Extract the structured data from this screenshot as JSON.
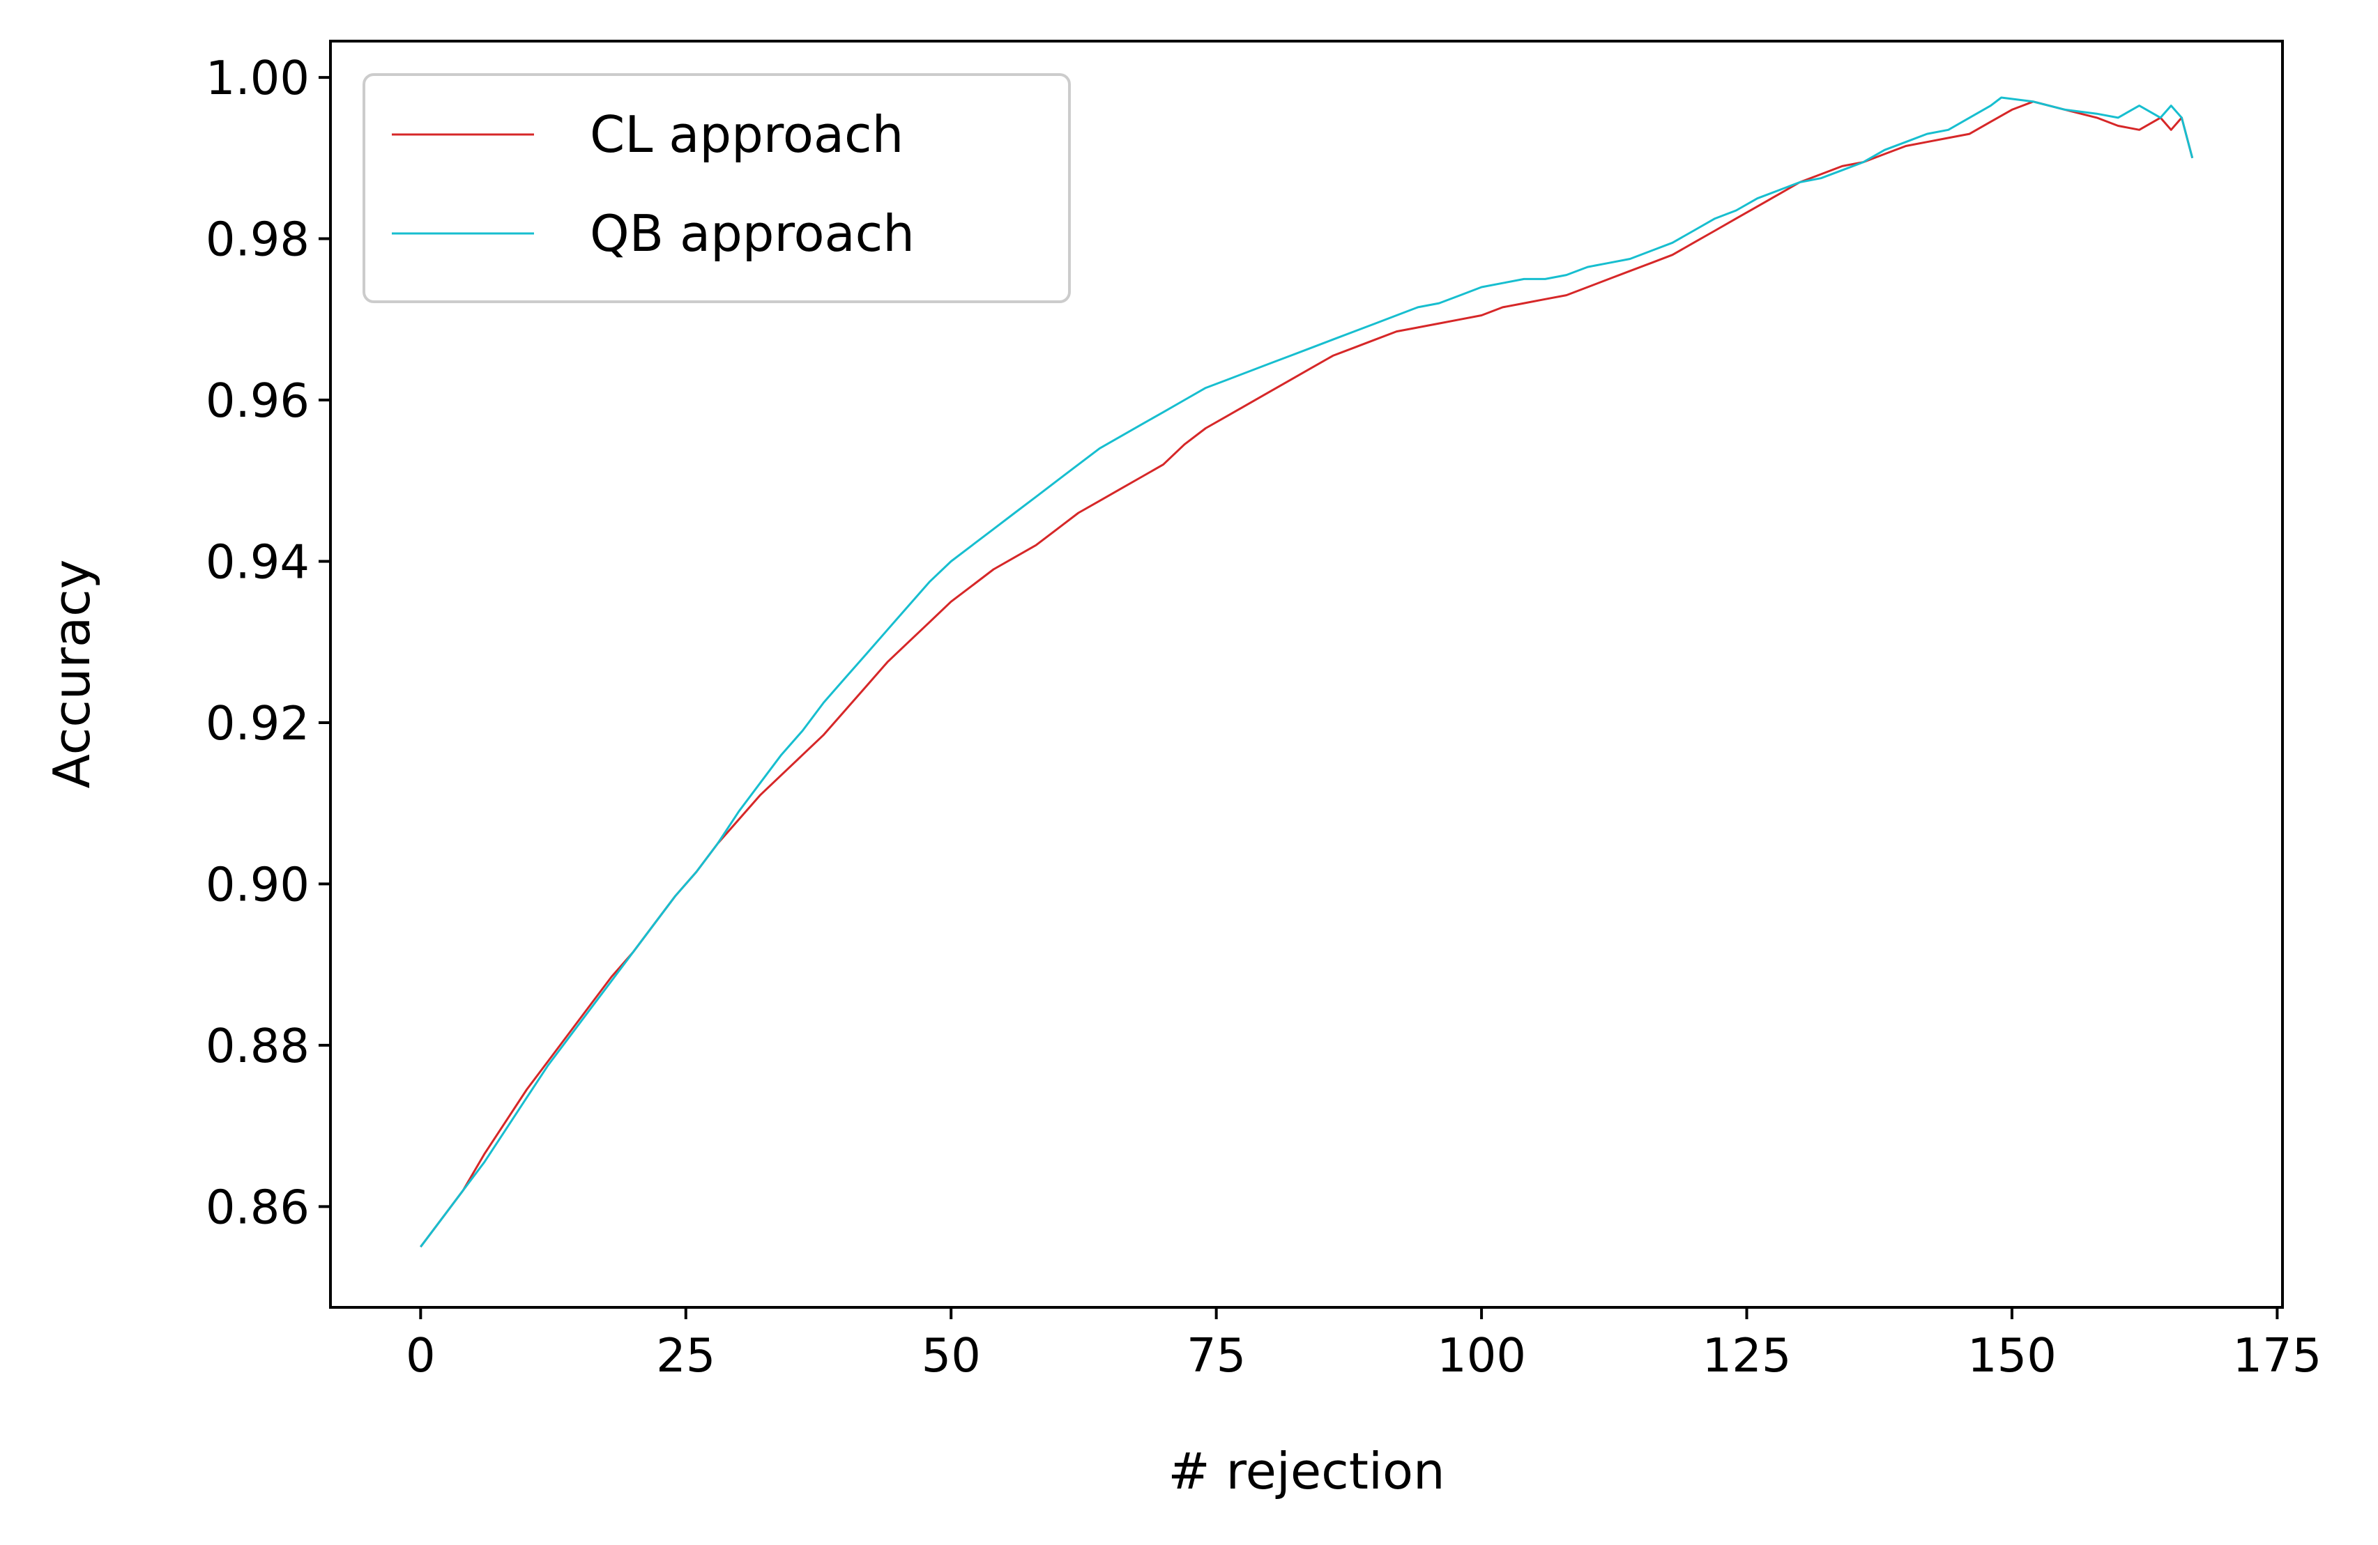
{
  "chart_data": {
    "type": "line",
    "title": "",
    "xlabel": "# rejection",
    "ylabel": "Accuracy",
    "xlim": [
      -8.5,
      175.5
    ],
    "ylim": [
      0.8475,
      1.0045
    ],
    "x_ticks": [
      0,
      25,
      50,
      75,
      100,
      125,
      150,
      175
    ],
    "x_tick_labels": [
      "0",
      "25",
      "50",
      "75",
      "100",
      "125",
      "150",
      "175"
    ],
    "y_ticks": [
      0.86,
      0.88,
      0.9,
      0.92,
      0.94,
      0.96,
      0.98,
      1.0
    ],
    "y_tick_labels": [
      "0.86",
      "0.88",
      "0.90",
      "0.92",
      "0.94",
      "0.96",
      "0.98",
      "1.00"
    ],
    "grid": false,
    "legend_position": "top-left",
    "series": [
      {
        "name": "CL approach",
        "color": "#d62728",
        "x": [
          0,
          2,
          4,
          6,
          8,
          10,
          12,
          14,
          16,
          18,
          20,
          22,
          24,
          26,
          28,
          30,
          32,
          34,
          36,
          38,
          40,
          42,
          44,
          46,
          48,
          50,
          52,
          54,
          56,
          58,
          60,
          62,
          64,
          66,
          68,
          70,
          72,
          74,
          76,
          78,
          80,
          82,
          84,
          86,
          88,
          90,
          92,
          94,
          96,
          98,
          100,
          102,
          104,
          106,
          108,
          110,
          112,
          114,
          116,
          118,
          120,
          122,
          124,
          126,
          128,
          130,
          132,
          134,
          136,
          138,
          140,
          142,
          144,
          146,
          148,
          150,
          151,
          152,
          155,
          158,
          160,
          162,
          164,
          165,
          166,
          167
        ],
        "y": [
          0.855,
          0.8585,
          0.862,
          0.8665,
          0.8705,
          0.8745,
          0.878,
          0.8815,
          0.885,
          0.8885,
          0.8915,
          0.895,
          0.8985,
          0.9015,
          0.905,
          0.908,
          0.911,
          0.9135,
          0.916,
          0.9185,
          0.9215,
          0.9245,
          0.9275,
          0.93,
          0.9325,
          0.935,
          0.937,
          0.939,
          0.9405,
          0.942,
          0.944,
          0.946,
          0.9475,
          0.949,
          0.9505,
          0.952,
          0.9545,
          0.9565,
          0.958,
          0.9595,
          0.961,
          0.9625,
          0.964,
          0.9655,
          0.9665,
          0.9675,
          0.9685,
          0.969,
          0.9695,
          0.97,
          0.9705,
          0.9715,
          0.972,
          0.9725,
          0.973,
          0.974,
          0.975,
          0.976,
          0.977,
          0.978,
          0.9795,
          0.981,
          0.9825,
          0.984,
          0.9855,
          0.987,
          0.988,
          0.989,
          0.9895,
          0.9905,
          0.9915,
          0.992,
          0.9925,
          0.993,
          0.9945,
          0.996,
          0.9965,
          0.997,
          0.996,
          0.995,
          0.994,
          0.9935,
          0.995,
          0.9935,
          0.995,
          0.99
        ]
      },
      {
        "name": "QB approach",
        "color": "#17becf",
        "x": [
          0,
          2,
          4,
          6,
          8,
          10,
          12,
          14,
          16,
          18,
          20,
          22,
          24,
          26,
          28,
          30,
          32,
          34,
          36,
          38,
          40,
          42,
          44,
          46,
          48,
          50,
          52,
          54,
          56,
          58,
          60,
          62,
          64,
          66,
          68,
          70,
          72,
          74,
          76,
          78,
          80,
          82,
          84,
          86,
          88,
          90,
          92,
          94,
          96,
          98,
          100,
          102,
          104,
          106,
          108,
          110,
          112,
          114,
          116,
          118,
          120,
          122,
          124,
          126,
          128,
          130,
          132,
          134,
          136,
          138,
          140,
          142,
          144,
          146,
          148,
          149,
          152,
          155,
          158,
          160,
          162,
          164,
          165,
          166,
          167
        ],
        "y": [
          0.855,
          0.8585,
          0.862,
          0.8655,
          0.8695,
          0.8735,
          0.8775,
          0.881,
          0.8845,
          0.888,
          0.8915,
          0.895,
          0.8985,
          0.9015,
          0.905,
          0.909,
          0.9125,
          0.916,
          0.919,
          0.9225,
          0.9255,
          0.9285,
          0.9315,
          0.9345,
          0.9375,
          0.94,
          0.942,
          0.944,
          0.946,
          0.948,
          0.95,
          0.952,
          0.954,
          0.9555,
          0.957,
          0.9585,
          0.96,
          0.9615,
          0.9625,
          0.9635,
          0.9645,
          0.9655,
          0.9665,
          0.9675,
          0.9685,
          0.9695,
          0.9705,
          0.9715,
          0.972,
          0.973,
          0.974,
          0.9745,
          0.975,
          0.975,
          0.9755,
          0.9765,
          0.977,
          0.9775,
          0.9785,
          0.9795,
          0.981,
          0.9825,
          0.9835,
          0.985,
          0.986,
          0.987,
          0.9875,
          0.9885,
          0.9895,
          0.991,
          0.992,
          0.993,
          0.9935,
          0.995,
          0.9965,
          0.9975,
          0.997,
          0.996,
          0.9955,
          0.995,
          0.9965,
          0.995,
          0.9965,
          0.995,
          0.99
        ]
      }
    ]
  }
}
